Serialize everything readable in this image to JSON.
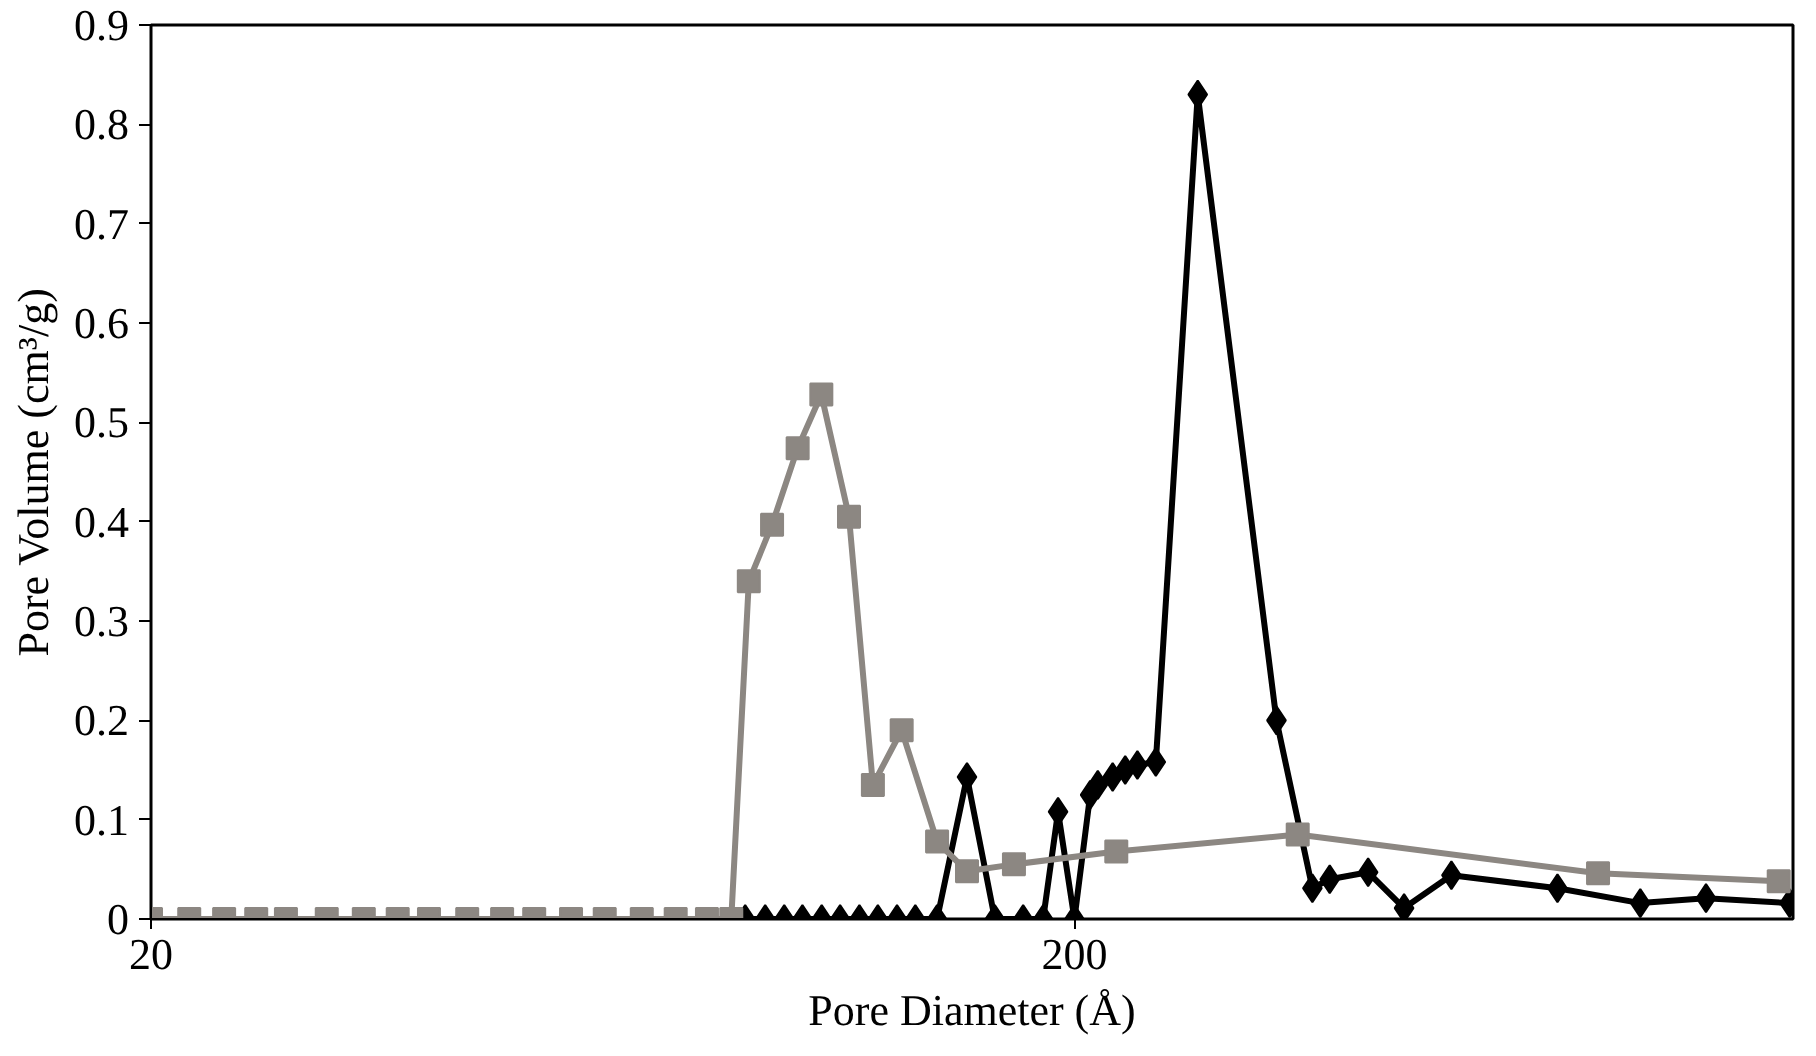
{
  "chart_data": {
    "type": "line",
    "xlabel": "Pore Diameter (Å)",
    "ylabel": "Pore Volume (cm³/g)",
    "log": "x",
    "xlim": [
      20,
      1200
    ],
    "xticks": [
      20,
      200
    ],
    "ylim": [
      0,
      0.9
    ],
    "yticks": [
      0,
      0.1,
      0.2,
      0.3,
      0.4,
      0.5,
      0.6,
      0.7,
      0.8,
      0.9
    ],
    "grid": false,
    "line_style": "solid",
    "series": [
      {
        "color": "#000000",
        "marker": "diamond",
        "x": [
          88,
          92.5,
          97,
          101.5,
          106.5,
          111.5,
          117,
          122.5,
          128.5,
          134.5,
          142,
          153,
          164,
          176,
          185,
          192,
          200,
          208,
          212,
          220,
          227,
          234,
          245,
          272,
          331,
          362,
          378,
          416,
          455,
          512,
          667,
          820,
          966,
          1190
        ],
        "values": [
          0,
          0,
          0,
          0,
          0,
          0,
          0,
          0,
          0,
          0,
          0,
          0.143,
          0,
          0,
          0,
          0.108,
          0,
          0.125,
          0.135,
          0.143,
          0.15,
          0.155,
          0.158,
          0.83,
          0.2,
          0.031,
          0.04,
          0.047,
          0.011,
          0.044,
          0.031,
          0.016,
          0.021,
          0.016
        ]
      },
      {
        "color": "#8c8782",
        "marker": "square",
        "x": [
          20,
          22,
          24,
          26,
          28,
          31,
          34,
          37,
          40,
          44,
          48,
          52,
          57,
          62,
          68,
          74,
          80,
          85,
          88.8,
          94.1,
          100.3,
          106.4,
          114,
          121,
          130,
          142,
          153,
          172,
          222,
          349,
          738,
          1158
        ],
        "values": [
          0,
          0,
          0,
          0,
          0,
          0,
          0,
          0,
          0,
          0,
          0,
          0,
          0,
          0,
          0,
          0,
          0,
          0,
          0.34,
          0.397,
          0.474,
          0.528,
          0.405,
          0.135,
          0.19,
          0.078,
          0.048,
          0.055,
          0.068,
          0.085,
          0.046,
          0.038
        ]
      }
    ]
  }
}
